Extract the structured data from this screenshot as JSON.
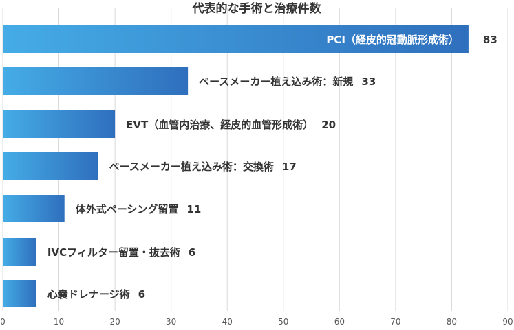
{
  "chart_data": {
    "type": "bar",
    "orientation": "horizontal",
    "title": "代表的な手術と治療件数",
    "xlabel": "",
    "ylabel": "",
    "xlim": [
      0,
      90
    ],
    "x_ticks": [
      0,
      10,
      20,
      30,
      40,
      50,
      60,
      70,
      80,
      90
    ],
    "grid": true,
    "categories": [
      "PCI（経皮的冠動脈形成術）",
      "ペースメーカー植え込み術：新規",
      "EVT（血管内治療、経皮的血管形成術）",
      "ペースメーカー植え込み術：交換術",
      "体外式ペーシング留置",
      "IVCフィルター留置・抜去術",
      "心嚢ドレナージ術"
    ],
    "values": [
      83,
      33,
      20,
      17,
      11,
      6,
      6
    ],
    "label_inside": [
      true,
      false,
      false,
      false,
      false,
      false,
      false
    ],
    "colors": {
      "bar_start": "#45ace6",
      "bar_end": "#2f6fbd",
      "grid": "#d9d9d9"
    }
  }
}
